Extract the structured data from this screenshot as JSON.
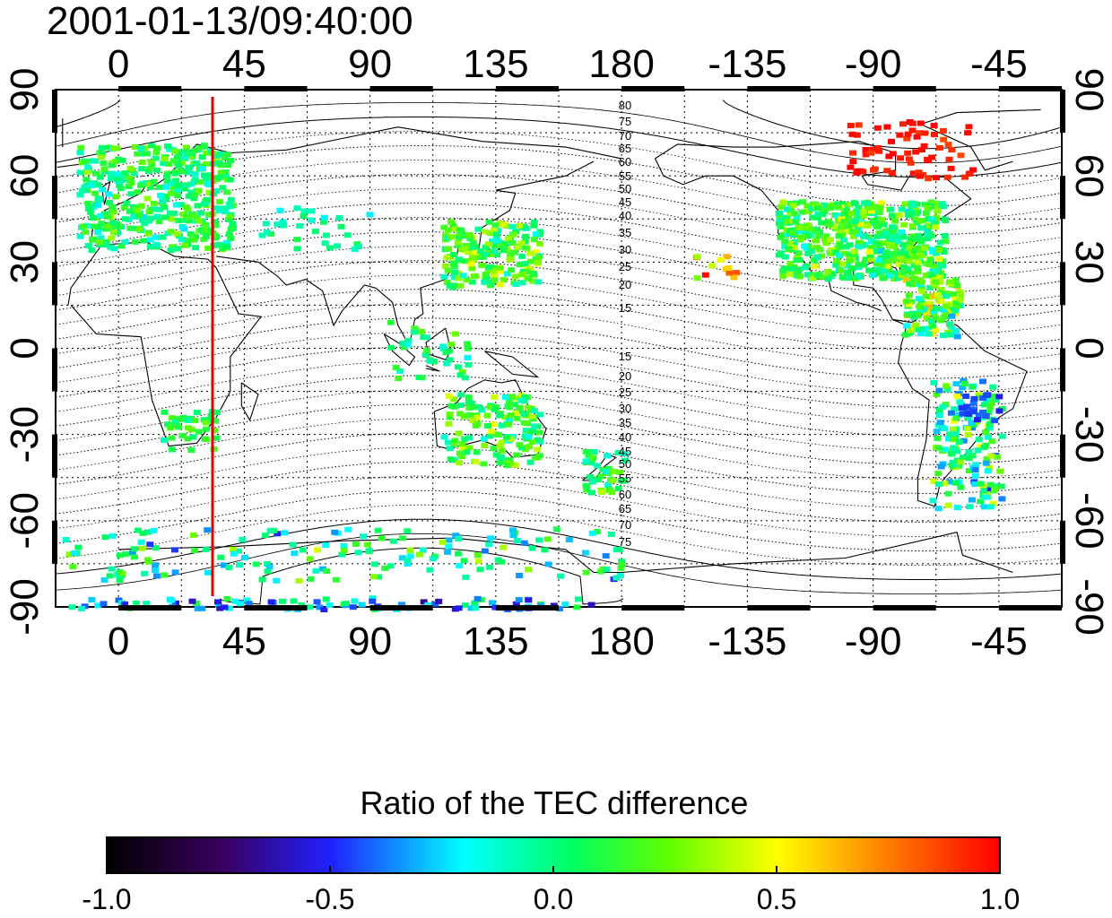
{
  "title": "2001-01-13/09:40:00",
  "map": {
    "top_lon_ticks": [
      "0",
      "45",
      "90",
      "135",
      "180",
      "-135",
      "-90",
      "-45"
    ],
    "bottom_lon_ticks": [
      "0",
      "45",
      "90",
      "135",
      "180",
      "-135",
      "-90",
      "-45"
    ],
    "left_lat_ticks": [
      "90",
      "60",
      "30",
      "0",
      "-30",
      "-60",
      "-90"
    ],
    "right_lat_ticks": [
      "90",
      "60",
      "30",
      "0",
      "-30",
      "-60",
      "-90"
    ],
    "marker_line_color": "#e00000",
    "contour_labels_north": [
      "80",
      "75",
      "70",
      "65",
      "60",
      "55",
      "50",
      "45",
      "40",
      "35",
      "30",
      "25",
      "20",
      "15"
    ],
    "contour_labels_south": [
      "15",
      "20",
      "25",
      "30",
      "35",
      "40",
      "45",
      "50",
      "55",
      "60",
      "65",
      "70",
      "75"
    ]
  },
  "colorbar": {
    "title": "Ratio of the TEC difference",
    "ticks": [
      "-1.0",
      "-0.5",
      "0.0",
      "0.5",
      "1.0"
    ],
    "colors": [
      "#000000",
      "#4b0082",
      "#0000ff",
      "#00ffff",
      "#00ff00",
      "#ffff00",
      "#ff8000",
      "#ff0000"
    ]
  }
}
